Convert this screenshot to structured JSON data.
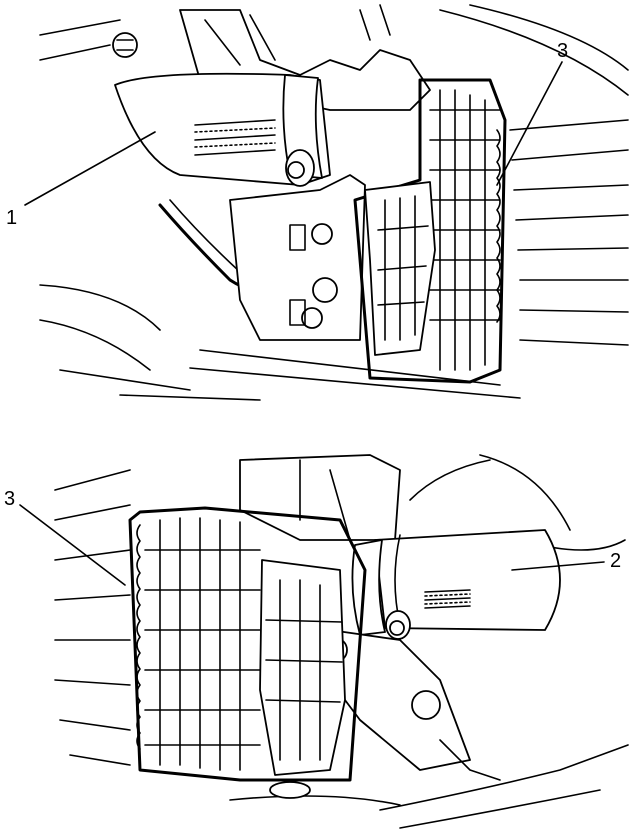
{
  "figure": {
    "top_panel": {
      "callouts": [
        {
          "id": "c1",
          "text": "1"
        },
        {
          "id": "c3",
          "text": "3"
        }
      ]
    },
    "bottom_panel": {
      "callouts": [
        {
          "id": "c3",
          "text": "3"
        },
        {
          "id": "c2",
          "text": "2"
        }
      ]
    },
    "line_color": "#000000",
    "background": "#ffffff"
  }
}
